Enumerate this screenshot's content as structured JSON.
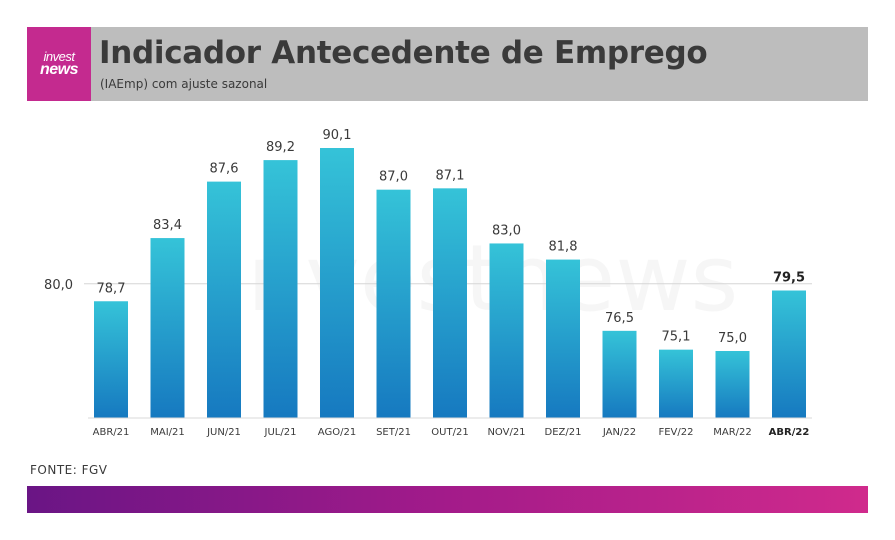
{
  "header": {
    "logo_line1": "invest",
    "logo_line2": "news",
    "title": "Indicador Antecedente de Emprego",
    "subtitle": "(IAEmp) com ajuste sazonal"
  },
  "footer": {
    "source": "FONTE: FGV"
  },
  "watermark": "investnews",
  "colors": {
    "bar_top": "#35c3d8",
    "bar_bottom": "#1679c0",
    "header_bg": "#bdbdbd",
    "logo_bg": "#c42a8f",
    "bottom_bar_start": "#6a1585",
    "bottom_bar_end": "#d02a8c"
  },
  "chart_data": {
    "type": "bar",
    "categories": [
      "ABR/21",
      "MAI/21",
      "JUN/21",
      "JUL/21",
      "AGO/21",
      "SET/21",
      "OUT/21",
      "NOV/21",
      "DEZ/21",
      "JAN/22",
      "FEV/22",
      "MAR/22",
      "ABR/22"
    ],
    "values": [
      78.7,
      83.4,
      87.6,
      89.2,
      90.1,
      87.0,
      87.1,
      83.0,
      81.8,
      76.5,
      75.1,
      75.0,
      79.5
    ],
    "value_labels": [
      "78,7",
      "83,4",
      "87,6",
      "89,2",
      "90,1",
      "87,0",
      "87,1",
      "83,0",
      "81,8",
      "76,5",
      "75,1",
      "75,0",
      "79,5"
    ],
    "reference_line": {
      "value": 80.0,
      "label": "80,0"
    },
    "highlight_index": 12,
    "ylim": [
      70,
      92
    ],
    "grid": false,
    "legend": "none"
  }
}
